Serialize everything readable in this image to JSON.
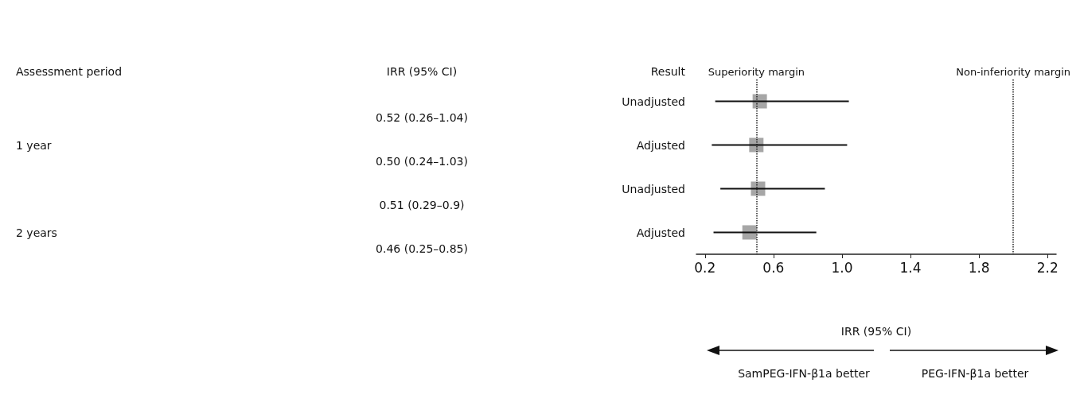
{
  "chart_data": {
    "type": "scatter",
    "orientation": "horizontal",
    "xlabel": "IRR (95% CI)",
    "categories": [
      "Unadjusted",
      "Adjusted",
      "Unadjusted",
      "Adjusted"
    ],
    "series": [
      {
        "color": "#a6a6a6",
        "values": [
          0.52,
          0.5,
          0.51,
          0.46
        ],
        "errors": [
          [
            0.26,
            1.04
          ],
          [
            0.24,
            1.03
          ],
          [
            0.29,
            0.9
          ],
          [
            0.25,
            0.85
          ]
        ],
        "value_labels": [
          "0.52 (0.26–1.04)",
          "0.50 (0.24–1.03)",
          "0.51 (0.29–0.9)",
          "0.46 (0.25–0.85)"
        ]
      }
    ],
    "marker": "square",
    "xlim": [
      0.15,
      2.25
    ],
    "xticks": [
      0.2,
      0.6,
      {
        "value": 1,
        "label": "1.0"
      },
      1.4,
      1.8,
      2.2
    ],
    "ref_lines": [
      {
        "axis": "x",
        "value": 0.5,
        "label": "Superiority margin",
        "line_style": "dotted"
      },
      {
        "axis": "x",
        "value": 2.0,
        "label": "Non-inferiority margin",
        "line_style": "dotted"
      }
    ],
    "annotations": [
      "Assessment period",
      "Result",
      "IRR (95% CI)",
      "1 year",
      "2 years",
      "SamPEG-IFN-β1a better",
      "PEG-IFN-β1a better"
    ],
    "grid": false
  }
}
